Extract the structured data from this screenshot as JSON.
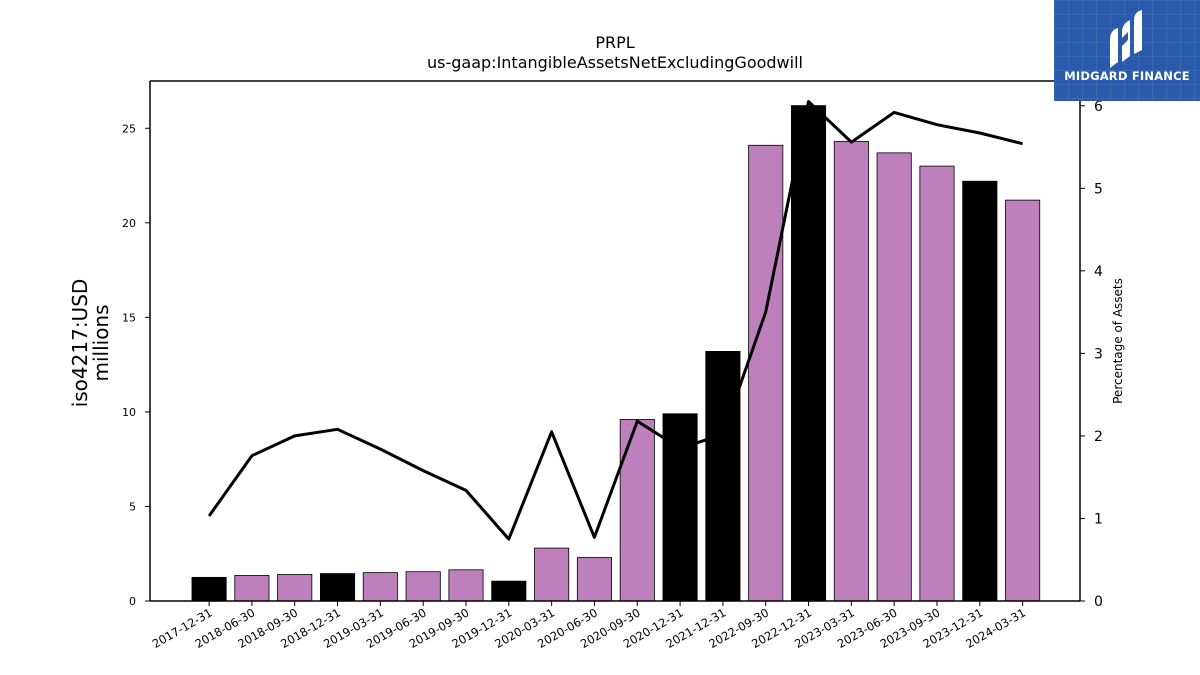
{
  "chart_data": {
    "type": "bar",
    "title": "PRPL",
    "subtitle": "us-gaap:IntangibleAssetsNetExcludingGoodwill",
    "ylabel": "iso4217:USD",
    "ylabel_unit": "millions",
    "y2label": "Percentage of Assets",
    "categories": [
      "2017-12-31",
      "2018-06-30",
      "2018-09-30",
      "2018-12-31",
      "2019-03-31",
      "2019-06-30",
      "2019-09-30",
      "2019-12-31",
      "2020-03-31",
      "2020-06-30",
      "2020-09-30",
      "2020-12-31",
      "2021-12-31",
      "2022-09-30",
      "2022-12-31",
      "2023-03-31",
      "2023-06-30",
      "2023-09-30",
      "2023-12-31",
      "2024-03-31"
    ],
    "bar_values": [
      1.25,
      1.35,
      1.4,
      1.45,
      1.5,
      1.55,
      1.65,
      1.05,
      2.8,
      2.3,
      9.6,
      9.9,
      13.2,
      24.1,
      26.2,
      24.3,
      23.7,
      23.0,
      22.2,
      21.2
    ],
    "bar_colors": [
      "#000000",
      "#bd80bd",
      "#bd80bd",
      "#000000",
      "#bd80bd",
      "#bd80bd",
      "#bd80bd",
      "#000000",
      "#bd80bd",
      "#bd80bd",
      "#bd80bd",
      "#000000",
      "#000000",
      "#bd80bd",
      "#000000",
      "#bd80bd",
      "#bd80bd",
      "#bd80bd",
      "#000000",
      "#bd80bd"
    ],
    "line_values": [
      1.03,
      1.76,
      2.0,
      2.08,
      1.84,
      1.58,
      1.34,
      0.75,
      2.05,
      0.77,
      2.18,
      1.85,
      2.02,
      3.5,
      6.05,
      5.56,
      5.92,
      5.77,
      5.67,
      5.54
    ],
    "ylim": [
      0,
      27.5
    ],
    "yticks": [
      0,
      5,
      10,
      15,
      20,
      25
    ],
    "y2lim": [
      0,
      6.3
    ],
    "y2ticks": [
      0,
      1,
      2,
      3,
      4,
      5,
      6
    ],
    "line_color": "#000000",
    "grid": false
  },
  "logo": {
    "text": "MIDGARD FINANCE",
    "background": "#2a5aab"
  }
}
